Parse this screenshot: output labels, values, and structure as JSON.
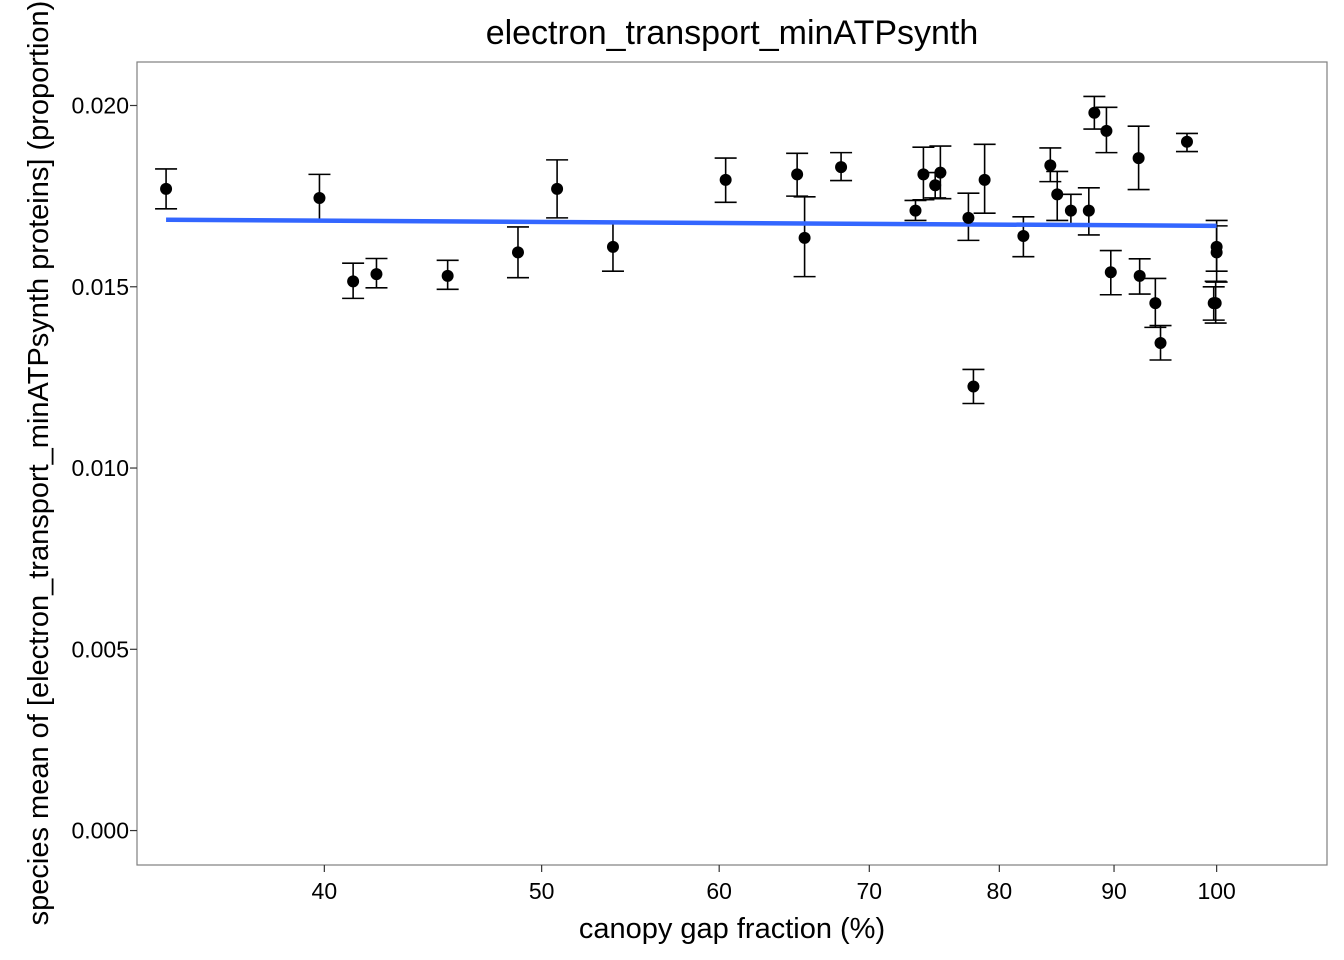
{
  "chart_data": {
    "type": "scatter",
    "title": "electron_transport_minATPsynth",
    "xlabel": "canopy gap fraction (%)",
    "ylabel": "species mean of [electron_transport_minATPsynth proteins] (proportion)",
    "x_scale": "log",
    "xlim": [
      33.0,
      112.0
    ],
    "ylim": [
      -0.00095,
      0.0212
    ],
    "x_ticks": [
      40,
      50,
      60,
      70,
      80,
      90,
      100
    ],
    "x_tick_labels": [
      "40",
      "50",
      "60",
      "70",
      "80",
      "90",
      "100"
    ],
    "y_ticks": [
      0.0,
      0.005,
      0.01,
      0.015,
      0.02
    ],
    "y_tick_labels": [
      "0.000",
      "0.005",
      "0.010",
      "0.015",
      "0.020"
    ],
    "grid": false,
    "point_color": "#000000",
    "fit_line": {
      "color": "#3366FF",
      "x": [
        34.0,
        100.0
      ],
      "y": [
        0.01685,
        0.01668
      ]
    },
    "points": [
      {
        "x": 34.0,
        "y": 0.0177,
        "ymin": 0.01715,
        "ymax": 0.01825
      },
      {
        "x": 39.8,
        "y": 0.01745,
        "ymin": 0.0168,
        "ymax": 0.0181
      },
      {
        "x": 41.2,
        "y": 0.01515,
        "ymin": 0.01468,
        "ymax": 0.01565
      },
      {
        "x": 42.2,
        "y": 0.01535,
        "ymin": 0.01497,
        "ymax": 0.01578
      },
      {
        "x": 45.4,
        "y": 0.0153,
        "ymin": 0.01493,
        "ymax": 0.01573
      },
      {
        "x": 48.8,
        "y": 0.01595,
        "ymin": 0.01525,
        "ymax": 0.01665
      },
      {
        "x": 50.8,
        "y": 0.0177,
        "ymin": 0.0169,
        "ymax": 0.0185
      },
      {
        "x": 53.8,
        "y": 0.0161,
        "ymin": 0.01543,
        "ymax": 0.01675
      },
      {
        "x": 60.4,
        "y": 0.01795,
        "ymin": 0.01733,
        "ymax": 0.01855
      },
      {
        "x": 65.0,
        "y": 0.0181,
        "ymin": 0.0175,
        "ymax": 0.01868
      },
      {
        "x": 65.5,
        "y": 0.01635,
        "ymin": 0.01528,
        "ymax": 0.01748
      },
      {
        "x": 68.0,
        "y": 0.0183,
        "ymin": 0.01793,
        "ymax": 0.0187
      },
      {
        "x": 73.4,
        "y": 0.0171,
        "ymin": 0.01683,
        "ymax": 0.01738
      },
      {
        "x": 74.0,
        "y": 0.0181,
        "ymin": 0.0174,
        "ymax": 0.01885
      },
      {
        "x": 74.9,
        "y": 0.0178,
        "ymin": 0.01745,
        "ymax": 0.01815
      },
      {
        "x": 75.3,
        "y": 0.01815,
        "ymin": 0.01743,
        "ymax": 0.01888
      },
      {
        "x": 77.5,
        "y": 0.0169,
        "ymin": 0.01628,
        "ymax": 0.01758
      },
      {
        "x": 77.9,
        "y": 0.01225,
        "ymin": 0.01178,
        "ymax": 0.01272
      },
      {
        "x": 78.8,
        "y": 0.01795,
        "ymin": 0.01703,
        "ymax": 0.01893
      },
      {
        "x": 82.0,
        "y": 0.0164,
        "ymin": 0.01583,
        "ymax": 0.01693
      },
      {
        "x": 84.3,
        "y": 0.01835,
        "ymin": 0.0179,
        "ymax": 0.01883
      },
      {
        "x": 84.9,
        "y": 0.01755,
        "ymin": 0.01683,
        "ymax": 0.01818
      },
      {
        "x": 86.1,
        "y": 0.0171,
        "ymin": 0.01668,
        "ymax": 0.01755
      },
      {
        "x": 87.7,
        "y": 0.0171,
        "ymin": 0.01643,
        "ymax": 0.01773
      },
      {
        "x": 88.2,
        "y": 0.0198,
        "ymin": 0.01935,
        "ymax": 0.02025
      },
      {
        "x": 89.3,
        "y": 0.0193,
        "ymin": 0.0187,
        "ymax": 0.01995
      },
      {
        "x": 89.7,
        "y": 0.0154,
        "ymin": 0.01478,
        "ymax": 0.016
      },
      {
        "x": 92.3,
        "y": 0.01855,
        "ymin": 0.01768,
        "ymax": 0.01943
      },
      {
        "x": 92.4,
        "y": 0.0153,
        "ymin": 0.0148,
        "ymax": 0.01577
      },
      {
        "x": 93.9,
        "y": 0.01455,
        "ymin": 0.01388,
        "ymax": 0.01523
      },
      {
        "x": 94.4,
        "y": 0.01345,
        "ymin": 0.01298,
        "ymax": 0.01393
      },
      {
        "x": 97.0,
        "y": 0.019,
        "ymin": 0.01873,
        "ymax": 0.01923
      },
      {
        "x": 99.7,
        "y": 0.01455,
        "ymin": 0.01408,
        "ymax": 0.015
      },
      {
        "x": 99.9,
        "y": 0.01455,
        "ymin": 0.014,
        "ymax": 0.01515
      },
      {
        "x": 100.0,
        "y": 0.0161,
        "ymin": 0.01543,
        "ymax": 0.01683
      },
      {
        "x": 100.0,
        "y": 0.01595,
        "ymin": 0.01513,
        "ymax": 0.01668
      }
    ]
  }
}
